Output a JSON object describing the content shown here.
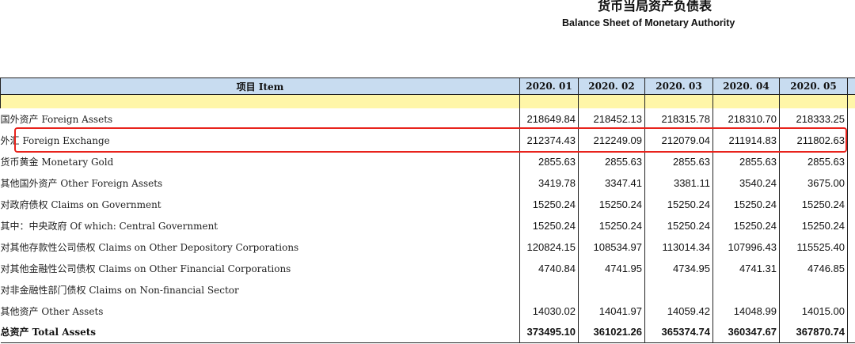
{
  "title": {
    "cn": "货币当局资产负债表",
    "en": "Balance Sheet of  Monetary Authority"
  },
  "header": {
    "item": "项目  Item",
    "periods": [
      "2020. 01",
      "2020. 02",
      "2020. 03",
      "2020. 04",
      "2020. 05"
    ]
  },
  "highlight_color": "#e8231c",
  "rows": [
    {
      "label": "国外资产   Foreign Assets",
      "values": [
        "218649.84",
        "218452.13",
        "218315.78",
        "218310.70",
        "218333.25"
      ]
    },
    {
      "label": "外汇  Foreign Exchange",
      "values": [
        "212374.43",
        "212249.09",
        "212079.04",
        "211914.83",
        "211802.63"
      ]
    },
    {
      "label": "货币黄金  Monetary Gold",
      "values": [
        "2855.63",
        "2855.63",
        "2855.63",
        "2855.63",
        "2855.63"
      ]
    },
    {
      "label": "其他国外资产  Other Foreign Assets",
      "values": [
        "3419.78",
        "3347.41",
        "3381.11",
        "3540.24",
        "3675.00"
      ]
    },
    {
      "label": "对政府债权  Claims on Government",
      "values": [
        "15250.24",
        "15250.24",
        "15250.24",
        "15250.24",
        "15250.24"
      ]
    },
    {
      "label": "其中：中央政府  Of which: Central Government",
      "values": [
        "15250.24",
        "15250.24",
        "15250.24",
        "15250.24",
        "15250.24"
      ]
    },
    {
      "label": "对其他存款性公司债权  Claims on Other Depository Corporations",
      "values": [
        "120824.15",
        "108534.97",
        "113014.34",
        "107996.43",
        "115525.40"
      ]
    },
    {
      "label": "对其他金融性公司债权  Claims on Other Financial Corporations",
      "values": [
        "4740.84",
        "4741.95",
        "4734.95",
        "4741.31",
        "4746.85"
      ]
    },
    {
      "label": "对非金融性部门债权  Claims on Non-financial Sector",
      "values": [
        "",
        "",
        "",
        "",
        ""
      ]
    },
    {
      "label": "其他资产  Other Assets",
      "values": [
        "14030.02",
        "14041.97",
        "14059.42",
        "14048.99",
        "14015.00"
      ]
    },
    {
      "label": "总资产  Total Assets",
      "values": [
        "373495.10",
        "361021.26",
        "365374.74",
        "360347.67",
        "367870.74"
      ]
    }
  ]
}
